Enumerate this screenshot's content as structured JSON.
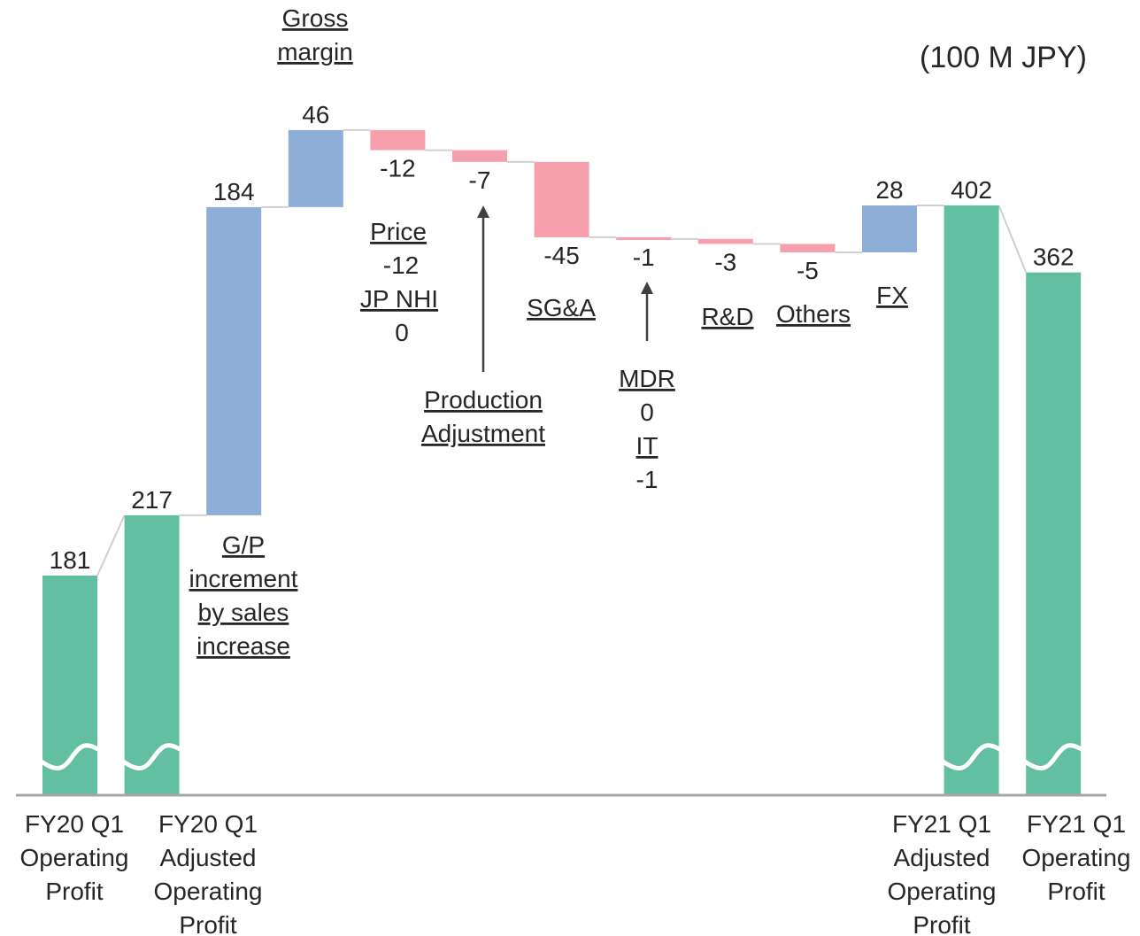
{
  "chart_data": {
    "type": "waterfall",
    "unit_label": "(100 M JPY)",
    "series": [
      {
        "label": "FY20 Q1\nOperating\nProfit",
        "value": 181,
        "kind": "total",
        "display": "181"
      },
      {
        "label": "FY20 Q1\nAdjusted\nOperating\nProfit",
        "value": 217,
        "kind": "total",
        "display": "217"
      },
      {
        "label": "",
        "value": 184,
        "kind": "increase",
        "display": "184"
      },
      {
        "label": "",
        "value": 46,
        "kind": "increase",
        "display": "46"
      },
      {
        "label": "",
        "value": -12,
        "kind": "decrease",
        "display": "-12"
      },
      {
        "label": "",
        "value": -7,
        "kind": "decrease",
        "display": "-7"
      },
      {
        "label": "",
        "value": -45,
        "kind": "decrease",
        "display": "-45"
      },
      {
        "label": "",
        "value": -1,
        "kind": "decrease",
        "display": "-1"
      },
      {
        "label": "",
        "value": -3,
        "kind": "decrease",
        "display": "-3"
      },
      {
        "label": "",
        "value": -5,
        "kind": "decrease",
        "display": "-5"
      },
      {
        "label": "",
        "value": 28,
        "kind": "increase",
        "display": "28"
      },
      {
        "label": "FY21 Q1\nAdjusted\nOperating\nProfit",
        "value": 402,
        "kind": "total",
        "display": "402"
      },
      {
        "label": "FY21 Q1\nOperating\nProfit",
        "value": 362,
        "kind": "total",
        "display": "362"
      }
    ],
    "annotations": {
      "gross_margin": "Gross\nmargin",
      "gp_increment": "G/P\nincrement\nby sales\nincrease",
      "price": "Price",
      "price_value": "-12",
      "jp_nhi": "JP NHI",
      "jp_nhi_value": "0",
      "production_adjustment": "Production\nAdjustment",
      "sga": "SG&A",
      "mdr": "MDR",
      "mdr_value": "0",
      "it": "IT",
      "it_value": "-1",
      "rd": "R&D",
      "others": "Others",
      "fx": "FX"
    },
    "axis_break": true,
    "colors": {
      "total": "#63bfa1",
      "increase": "#8eaed8",
      "decrease": "#f5a0ac",
      "connector": "#d0d0d0",
      "axis": "#a6a6a6",
      "arrow": "#404040"
    }
  }
}
